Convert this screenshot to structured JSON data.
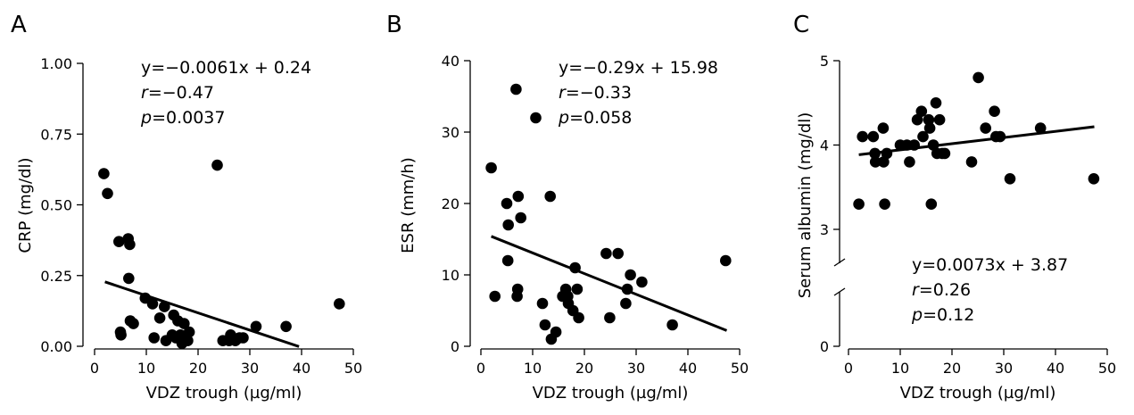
{
  "chart_data": [
    {
      "panel": "A",
      "type": "scatter",
      "xlabel": "VDZ trough (µg/ml)",
      "ylabel": "CRP (mg/dl)",
      "xlim": [
        0,
        50
      ],
      "ylim": [
        0,
        1.0
      ],
      "xticks": [
        "0",
        "10",
        "20",
        "30",
        "40",
        "50"
      ],
      "yticks": [
        "0.00",
        "0.25",
        "0.50",
        "0.75",
        "1.00"
      ],
      "annotation": [
        "y=−0.0061x + 0.24",
        "r=−0.47",
        "p=0.0037"
      ],
      "regression": {
        "slope": -0.0061,
        "intercept": 0.24,
        "x_range": [
          2,
          39.5
        ]
      },
      "points": [
        [
          1.8,
          0.61
        ],
        [
          2.5,
          0.54
        ],
        [
          4.7,
          0.37
        ],
        [
          5.0,
          0.05
        ],
        [
          5.1,
          0.04
        ],
        [
          6.5,
          0.38
        ],
        [
          6.8,
          0.36
        ],
        [
          6.6,
          0.24
        ],
        [
          6.9,
          0.09
        ],
        [
          7.5,
          0.08
        ],
        [
          9.8,
          0.17
        ],
        [
          11.2,
          0.15
        ],
        [
          11.5,
          0.03
        ],
        [
          12.6,
          0.1
        ],
        [
          13.5,
          0.14
        ],
        [
          13.8,
          0.02
        ],
        [
          15.0,
          0.04
        ],
        [
          15.3,
          0.11
        ],
        [
          15.7,
          0.03
        ],
        [
          16.1,
          0.09
        ],
        [
          16.6,
          0.04
        ],
        [
          16.9,
          0.01
        ],
        [
          17.3,
          0.08
        ],
        [
          17.6,
          0.02
        ],
        [
          18.0,
          0.02
        ],
        [
          18.3,
          0.05
        ],
        [
          23.7,
          0.64
        ],
        [
          24.8,
          0.02
        ],
        [
          26.3,
          0.04
        ],
        [
          26.0,
          0.02
        ],
        [
          27.2,
          0.02
        ],
        [
          28.0,
          0.03
        ],
        [
          28.7,
          0.03
        ],
        [
          31.2,
          0.07
        ],
        [
          37.0,
          0.07
        ],
        [
          47.3,
          0.15
        ]
      ]
    },
    {
      "panel": "B",
      "type": "scatter",
      "xlabel": "VDZ trough (µg/ml)",
      "ylabel": "ESR (mm/h)",
      "xlim": [
        0,
        50
      ],
      "ylim": [
        0,
        40
      ],
      "xticks": [
        "0",
        "10",
        "20",
        "30",
        "40",
        "50"
      ],
      "yticks": [
        "0",
        "10",
        "20",
        "30",
        "40"
      ],
      "annotation": [
        "y=−0.29x + 15.98",
        "r=−0.33",
        "p=0.058"
      ],
      "regression": {
        "slope": -0.29,
        "intercept": 15.98,
        "x_range": [
          2,
          47.5
        ]
      },
      "points": [
        [
          2.0,
          25
        ],
        [
          2.7,
          7
        ],
        [
          5.0,
          20
        ],
        [
          5.2,
          12
        ],
        [
          5.3,
          17
        ],
        [
          6.8,
          36
        ],
        [
          7.0,
          7
        ],
        [
          7.1,
          8
        ],
        [
          7.2,
          21
        ],
        [
          7.7,
          18
        ],
        [
          10.6,
          32
        ],
        [
          11.9,
          6
        ],
        [
          12.4,
          3
        ],
        [
          13.4,
          21
        ],
        [
          13.6,
          1
        ],
        [
          14.5,
          2
        ],
        [
          15.8,
          7
        ],
        [
          16.4,
          8
        ],
        [
          16.8,
          7
        ],
        [
          16.9,
          6
        ],
        [
          17.8,
          5
        ],
        [
          18.2,
          11
        ],
        [
          18.6,
          8
        ],
        [
          18.9,
          4
        ],
        [
          24.2,
          13
        ],
        [
          24.9,
          4
        ],
        [
          26.5,
          13
        ],
        [
          28.0,
          6
        ],
        [
          28.3,
          8
        ],
        [
          28.9,
          10
        ],
        [
          31.1,
          9
        ],
        [
          37.0,
          3
        ],
        [
          47.3,
          12
        ]
      ]
    },
    {
      "panel": "C",
      "type": "scatter",
      "xlabel": "VDZ trough (µg/ml)",
      "ylabel": "Serum albumin (mg/dl)",
      "xlim": [
        0,
        50
      ],
      "y_axis_break": true,
      "yticks": [
        "0",
        "3",
        "4",
        "5"
      ],
      "xticks": [
        "0",
        "10",
        "20",
        "30",
        "40",
        "50"
      ],
      "annotation": [
        "y=0.0073x + 3.87",
        "r=0.26",
        "p=0.12"
      ],
      "regression": {
        "slope": 0.0073,
        "intercept": 3.87,
        "x_range": [
          2,
          47.5
        ]
      },
      "points": [
        [
          2.0,
          3.3
        ],
        [
          2.7,
          4.1
        ],
        [
          4.8,
          4.1
        ],
        [
          5.1,
          3.9
        ],
        [
          5.2,
          3.8
        ],
        [
          6.7,
          4.2
        ],
        [
          6.8,
          3.8
        ],
        [
          7.0,
          3.3
        ],
        [
          7.4,
          3.9
        ],
        [
          10.0,
          4.0
        ],
        [
          11.3,
          4.0
        ],
        [
          11.8,
          3.8
        ],
        [
          12.7,
          4.0
        ],
        [
          13.3,
          4.3
        ],
        [
          14.1,
          4.4
        ],
        [
          14.4,
          4.1
        ],
        [
          15.5,
          4.3
        ],
        [
          15.7,
          4.2
        ],
        [
          16.0,
          3.3
        ],
        [
          16.4,
          4.0
        ],
        [
          16.9,
          4.5
        ],
        [
          17.1,
          3.9
        ],
        [
          17.6,
          4.3
        ],
        [
          18.1,
          3.9
        ],
        [
          18.6,
          3.9
        ],
        [
          23.8,
          3.8
        ],
        [
          25.1,
          4.8
        ],
        [
          26.5,
          4.2
        ],
        [
          28.2,
          4.4
        ],
        [
          28.5,
          4.1
        ],
        [
          29.3,
          4.1
        ],
        [
          31.2,
          3.6
        ],
        [
          37.1,
          4.2
        ],
        [
          47.4,
          3.6
        ]
      ]
    }
  ]
}
